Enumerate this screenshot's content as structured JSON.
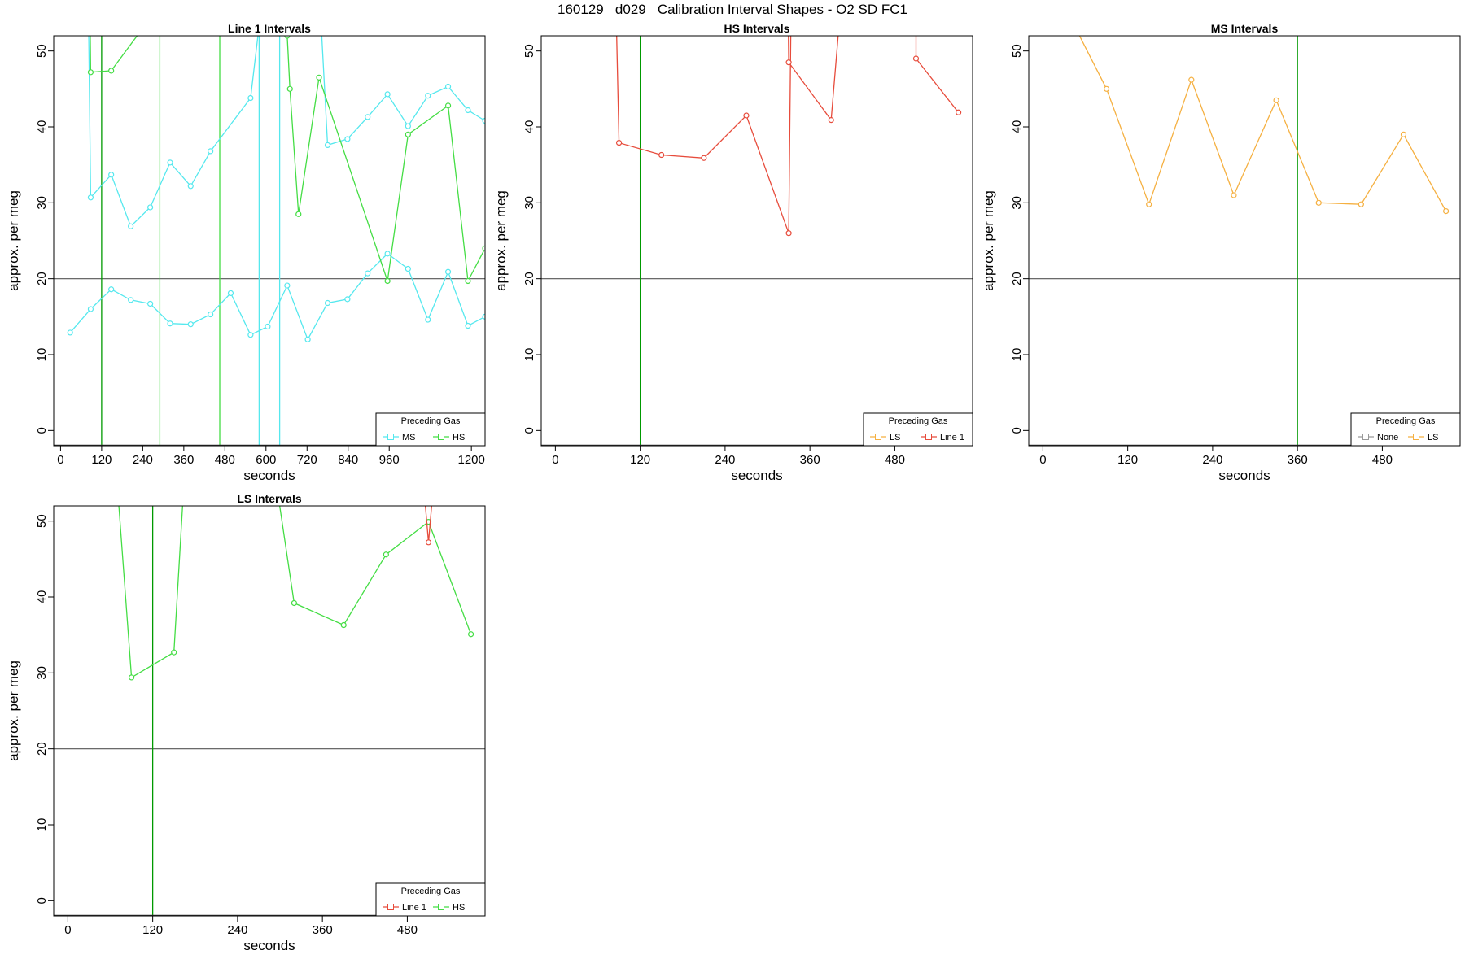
{
  "page_title": "160129   d029   Calibration Interval Shapes - O2 SD FC1",
  "chart_data": [
    {
      "type": "line",
      "title": "Line 1 Intervals",
      "xlabel": "seconds",
      "ylabel": "approx. per meg",
      "xlim": [
        -20,
        1240
      ],
      "ylim": [
        -2,
        52
      ],
      "xticks": [
        0,
        120,
        240,
        360,
        480,
        600,
        720,
        840,
        960,
        1200
      ],
      "xtick_labels": [
        "0",
        "120",
        "240",
        "360",
        "480",
        "600",
        "720",
        "840",
        "960",
        "1200"
      ],
      "yticks": [
        0,
        10,
        20,
        30,
        40,
        50
      ],
      "ytick_labels": [
        "0",
        "10",
        "20",
        "30",
        "40",
        "50"
      ],
      "hlines": [
        20
      ],
      "vlines": [
        {
          "x": 120,
          "color": "#009900"
        },
        {
          "x": 290,
          "color": "#44dd44"
        },
        {
          "x": 465,
          "color": "#44dd44"
        },
        {
          "x": 580,
          "color": "#55e8ee"
        },
        {
          "x": 640,
          "color": "#55e8ee"
        }
      ],
      "legend": {
        "title": "Preceding Gas",
        "position": "bottom-right",
        "entries": [
          {
            "label": "MS",
            "color": "#55e8ee"
          },
          {
            "label": "HS",
            "color": "#44dd44"
          }
        ]
      },
      "series": [
        {
          "color": "#55e8ee",
          "points": [
            [
              28,
              12.9
            ],
            [
              88,
              16
            ],
            [
              148,
              18.6
            ],
            [
              205,
              17.2
            ],
            [
              262,
              16.7
            ],
            [
              320,
              14.1
            ],
            [
              380,
              14
            ],
            [
              438,
              15.3
            ],
            [
              497,
              18.1
            ],
            [
              555,
              12.6
            ],
            [
              605,
              13.7
            ],
            [
              662,
              19.1
            ],
            [
              722,
              12
            ],
            [
              780,
              16.8
            ],
            [
              838,
              17.3
            ],
            [
              897,
              20.7
            ],
            [
              955,
              23.3
            ],
            [
              1015,
              21.3
            ],
            [
              1073,
              14.6
            ],
            [
              1132,
              20.9
            ],
            [
              1190,
              13.8
            ],
            [
              1240,
              15
            ]
          ]
        },
        {
          "color": "#55e8ee",
          "points": [
            [
              75,
              80
            ],
            [
              88,
              30.7
            ],
            [
              148,
              33.7
            ],
            [
              205,
              26.9
            ],
            [
              262,
              29.4
            ],
            [
              320,
              35.3
            ],
            [
              380,
              32.2
            ],
            [
              438,
              36.8
            ],
            [
              555,
              43.8
            ],
            [
              587,
              56
            ],
            [
              605,
              54
            ],
            [
              662,
              80
            ],
            [
              730,
              80
            ],
            [
              780,
              37.6
            ],
            [
              838,
              38.4
            ],
            [
              897,
              41.3
            ],
            [
              955,
              44.3
            ],
            [
              1015,
              40.1
            ],
            [
              1073,
              44.1
            ],
            [
              1132,
              45.3
            ],
            [
              1190,
              42.2
            ],
            [
              1240,
              40.8
            ]
          ]
        },
        {
          "color": "#44dd44",
          "points": [
            [
              80,
              80
            ],
            [
              88,
              47.2
            ],
            [
              148,
              47.4
            ],
            [
              232,
              52.5
            ],
            [
              600,
              80
            ],
            [
              662,
              52
            ],
            [
              670,
              45
            ],
            [
              695,
              28.5
            ],
            [
              755,
              46.5
            ],
            [
              955,
              19.7
            ],
            [
              1015,
              39
            ],
            [
              1132,
              42.8
            ],
            [
              1190,
              19.7
            ],
            [
              1240,
              24
            ]
          ]
        }
      ]
    },
    {
      "type": "line",
      "title": "HS Intervals",
      "xlabel": "seconds",
      "ylabel": "approx. per meg",
      "xlim": [
        -20,
        590
      ],
      "ylim": [
        -2,
        52
      ],
      "xticks": [
        0,
        120,
        240,
        360,
        480
      ],
      "xtick_labels": [
        "0",
        "120",
        "240",
        "360",
        "480"
      ],
      "yticks": [
        0,
        10,
        20,
        30,
        40,
        50
      ],
      "ytick_labels": [
        "0",
        "10",
        "20",
        "30",
        "40",
        "50"
      ],
      "hlines": [
        20
      ],
      "vlines": [
        {
          "x": 120,
          "color": "#009900"
        }
      ],
      "legend": {
        "title": "Preceding Gas",
        "position": "bottom-right",
        "entries": [
          {
            "label": "LS",
            "color": "#f5b041"
          },
          {
            "label": "Line 1",
            "color": "#e74c3c"
          }
        ]
      },
      "series": [
        {
          "color": "#e74c3c",
          "points": [
            [
              80,
              80
            ],
            [
              90,
              37.9
            ],
            [
              150,
              36.3
            ],
            [
              210,
              35.9
            ],
            [
              270,
              41.5
            ],
            [
              330,
              26
            ],
            [
              336,
              80
            ],
            [
              326,
              80
            ],
            [
              330,
              48.5
            ],
            [
              390,
              40.9
            ],
            [
              425,
              80
            ],
            [
              510,
              80
            ],
            [
              510,
              49
            ],
            [
              570,
              41.9
            ]
          ]
        }
      ]
    },
    {
      "type": "line",
      "title": "MS Intervals",
      "xlabel": "seconds",
      "ylabel": "approx. per meg",
      "xlim": [
        -20,
        590
      ],
      "ylim": [
        -2,
        52
      ],
      "xticks": [
        0,
        120,
        240,
        360,
        480
      ],
      "xtick_labels": [
        "0",
        "120",
        "240",
        "360",
        "480"
      ],
      "yticks": [
        0,
        10,
        20,
        30,
        40,
        50
      ],
      "ytick_labels": [
        "0",
        "10",
        "20",
        "30",
        "40",
        "50"
      ],
      "hlines": [
        20
      ],
      "vlines": [
        {
          "x": 360,
          "color": "#009900"
        }
      ],
      "legend": {
        "title": "Preceding Gas",
        "position": "bottom-right",
        "entries": [
          {
            "label": "None",
            "color": "#999999"
          },
          {
            "label": "LS",
            "color": "#f5b041"
          }
        ]
      },
      "series": [
        {
          "color": "#f5b041",
          "points": [
            [
              30,
              56
            ],
            [
              90,
              45
            ],
            [
              150,
              29.8
            ],
            [
              210,
              46.2
            ],
            [
              270,
              31
            ],
            [
              330,
              43.5
            ],
            [
              390,
              30
            ],
            [
              450,
              29.8
            ],
            [
              510,
              39
            ],
            [
              570,
              28.9
            ]
          ]
        }
      ]
    },
    {
      "type": "line",
      "title": "LS Intervals",
      "xlabel": "seconds",
      "ylabel": "approx. per meg",
      "xlim": [
        -20,
        590
      ],
      "ylim": [
        -2,
        52
      ],
      "xticks": [
        0,
        120,
        240,
        360,
        480
      ],
      "xtick_labels": [
        "0",
        "120",
        "240",
        "360",
        "480"
      ],
      "yticks": [
        0,
        10,
        20,
        30,
        40,
        50
      ],
      "ytick_labels": [
        "0",
        "10",
        "20",
        "30",
        "40",
        "50"
      ],
      "hlines": [
        20
      ],
      "vlines": [
        {
          "x": 120,
          "color": "#009900"
        }
      ],
      "legend": {
        "title": "Preceding Gas",
        "position": "bottom-right",
        "entries": [
          {
            "label": "Line 1",
            "color": "#e74c3c"
          },
          {
            "label": "HS",
            "color": "#44dd44"
          }
        ]
      },
      "series": [
        {
          "color": "#44dd44",
          "points": [
            [
              50,
              80
            ],
            [
              90,
              29.4
            ],
            [
              150,
              32.7
            ],
            [
              180,
              80
            ],
            [
              255,
              80
            ],
            [
              320,
              39.2
            ],
            [
              390,
              36.3
            ],
            [
              450,
              45.6
            ],
            [
              510,
              49.9
            ],
            [
              570,
              35.1
            ]
          ]
        },
        {
          "color": "#e74c3c",
          "points": [
            [
              480,
              80
            ],
            [
              510,
              47.2
            ],
            [
              540,
              80
            ]
          ]
        }
      ]
    }
  ]
}
